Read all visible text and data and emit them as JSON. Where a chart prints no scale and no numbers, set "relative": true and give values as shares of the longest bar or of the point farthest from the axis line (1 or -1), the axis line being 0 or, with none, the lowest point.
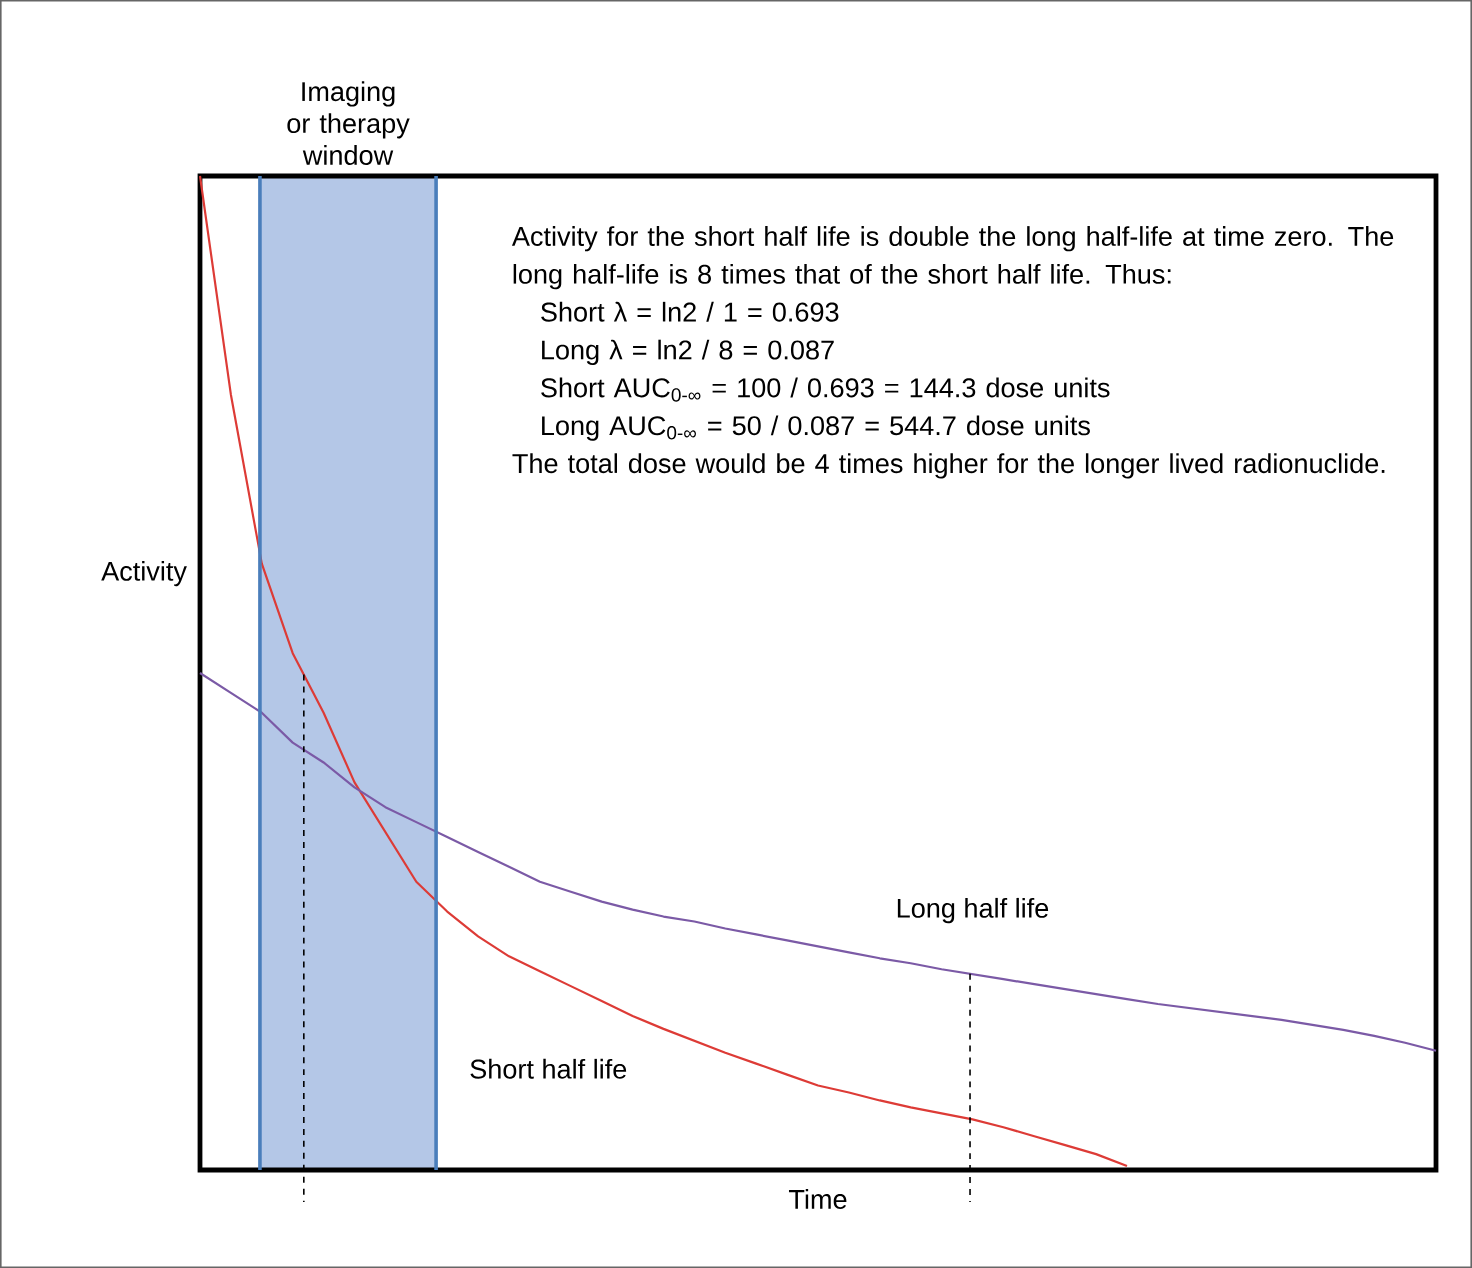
{
  "chart_data": {
    "type": "line",
    "relative": true,
    "xlabel": "Time",
    "ylabel": "Activity",
    "tick_labels": false,
    "marker": "none",
    "line_style": "solid",
    "categories": [
      null,
      null,
      null,
      null,
      null,
      null,
      null,
      null,
      null,
      null,
      null,
      null,
      null,
      null,
      null,
      null,
      null,
      null,
      null,
      null,
      null,
      null,
      null,
      null,
      null,
      null,
      null,
      null,
      null,
      null,
      null,
      null,
      null,
      null,
      null,
      null,
      null,
      null,
      null,
      null,
      null
    ],
    "series": [
      {
        "name": "Short half life",
        "color": "#dd3b36",
        "values": [
          1.0,
          0.78,
          0.61,
          0.52,
          0.46,
          0.39,
          0.34,
          0.29,
          0.26,
          0.235,
          0.215,
          0.2,
          0.185,
          0.17,
          0.155,
          0.142,
          0.13,
          0.118,
          0.107,
          0.096,
          0.085,
          0.078,
          0.07,
          0.063,
          0.057,
          0.051,
          0.043,
          0.034,
          0.025,
          0.016,
          0.004,
          null,
          null,
          null,
          null,
          null,
          null,
          null,
          null,
          null,
          null
        ]
      },
      {
        "name": "Long half life",
        "color": "#7b5aa6",
        "values": [
          0.5,
          0.48,
          0.46,
          0.43,
          0.41,
          0.385,
          0.365,
          0.35,
          0.335,
          0.32,
          0.305,
          0.29,
          0.28,
          0.27,
          0.262,
          0.255,
          0.25,
          0.243,
          0.237,
          0.231,
          0.225,
          0.219,
          0.213,
          0.208,
          0.202,
          0.197,
          0.192,
          0.187,
          0.182,
          0.177,
          0.172,
          0.167,
          0.163,
          0.159,
          0.155,
          0.151,
          0.146,
          0.141,
          0.135,
          0.128,
          0.12
        ]
      }
    ],
    "annotations": [
      "Imaging or therapy window",
      "Activity for the short half life is double the long half-life at time zero. The long half-life is 8 times that of the short half life. Thus:",
      "Short λ = ln2 / 1 = 0.693",
      "Long λ = ln2 / 8 = 0.087",
      "Short AUC$_{0-∞}$ = 100 / 0.693 = 144.3 dose units",
      "Long AUC$_{0-∞}$ = 50 / 0.087 = 544.7 dose units",
      "The total dose would be 4 times higher for the longer lived radionuclide."
    ]
  }
}
